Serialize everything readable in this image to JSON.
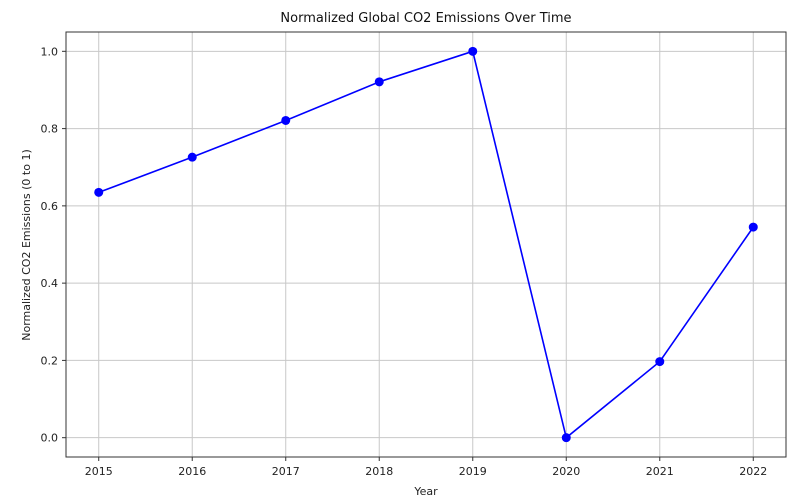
{
  "chart_data": {
    "type": "line",
    "title": "Normalized Global CO2 Emissions Over Time",
    "xlabel": "Year",
    "ylabel": "Normalized CO2 Emissions (0 to 1)",
    "x": [
      2015,
      2016,
      2017,
      2018,
      2019,
      2020,
      2021,
      2022
    ],
    "series": [
      {
        "values": [
          0.635,
          0.726,
          0.821,
          0.921,
          1.0,
          0.0,
          0.197,
          0.545
        ],
        "color": "#0000ff",
        "marker": "circle"
      }
    ],
    "xticks": [
      "2015",
      "2016",
      "2017",
      "2018",
      "2019",
      "2020",
      "2021",
      "2022"
    ],
    "yticks": [
      "0.0",
      "0.2",
      "0.4",
      "0.6",
      "0.8",
      "1.0"
    ],
    "ylim": [
      -0.05,
      1.05
    ],
    "xlim": [
      2014.65,
      2022.35
    ],
    "grid": true
  }
}
